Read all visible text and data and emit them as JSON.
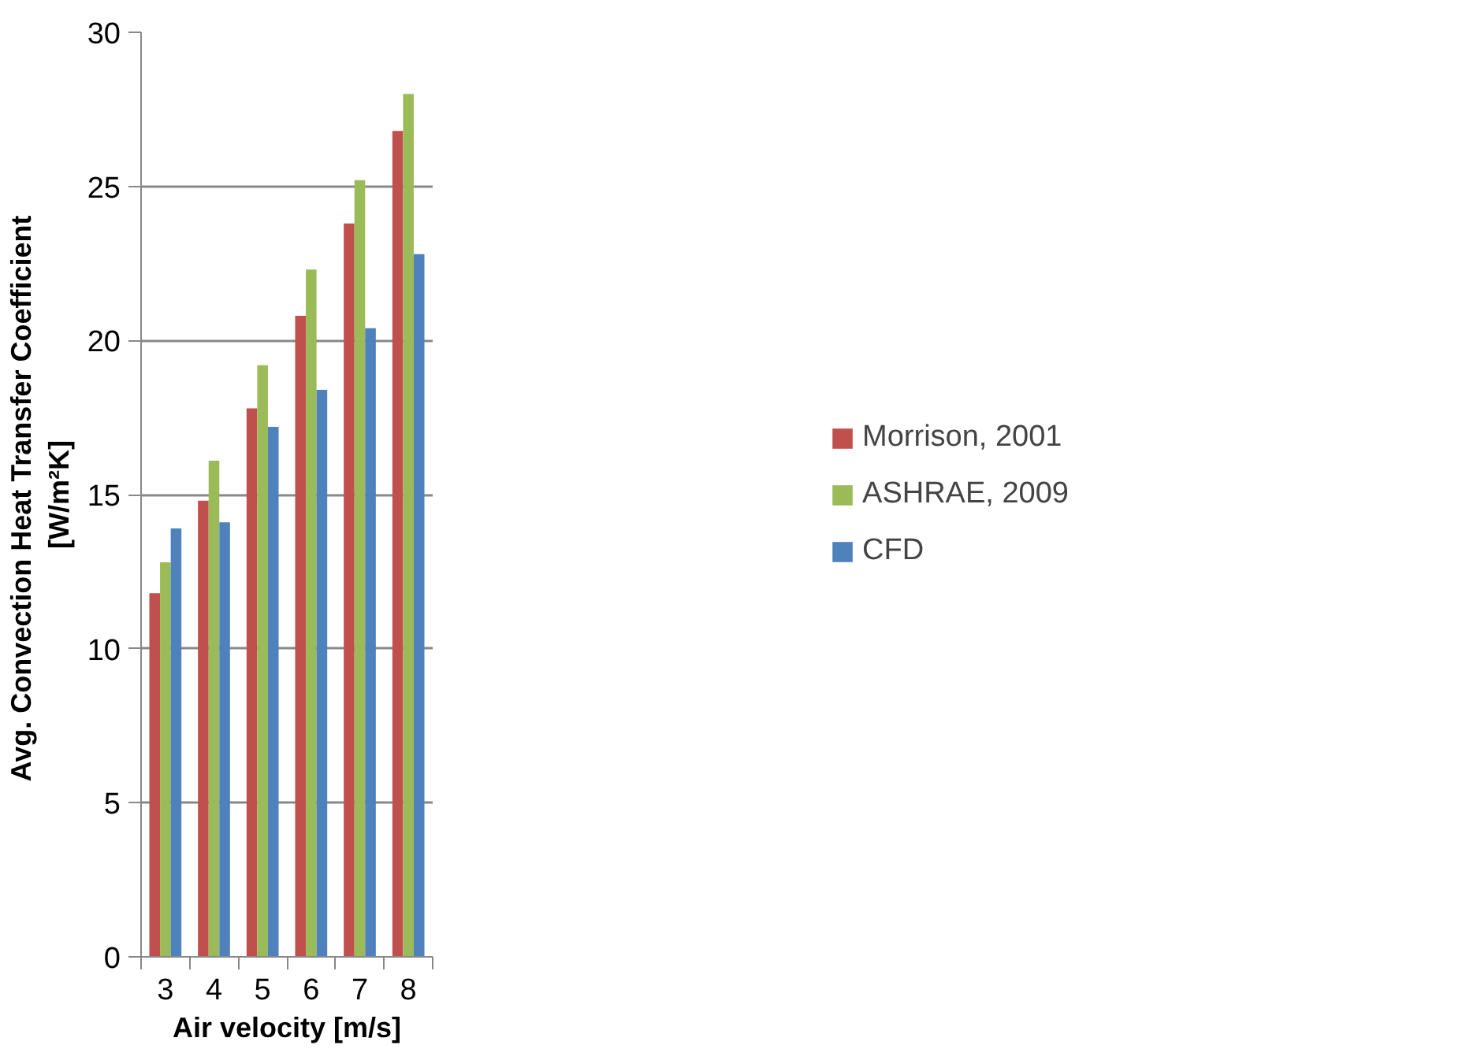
{
  "chart_data": {
    "type": "bar",
    "xlabel": "Air velocity [m/s]",
    "ylabel": "Avg.  Convection Heat Transfer Coefficient\n[W/m²K]",
    "categories": [
      "3",
      "4",
      "5",
      "6",
      "7",
      "8"
    ],
    "series": [
      {
        "name": "Morrison, 2001",
        "color": "#c0504d",
        "values": [
          11.8,
          14.8,
          17.8,
          20.8,
          23.8,
          26.8
        ]
      },
      {
        "name": "ASHRAE, 2009",
        "color": "#9bbb59",
        "values": [
          12.8,
          16.1,
          19.2,
          22.3,
          25.2,
          28.0
        ]
      },
      {
        "name": "CFD",
        "color": "#4f81bd",
        "values": [
          13.9,
          14.1,
          17.2,
          18.4,
          20.4,
          22.8
        ]
      }
    ],
    "ylim": [
      0,
      30
    ],
    "yticks": [
      0,
      5,
      10,
      15,
      20,
      25,
      30
    ],
    "grid": "y",
    "legend": "right"
  }
}
